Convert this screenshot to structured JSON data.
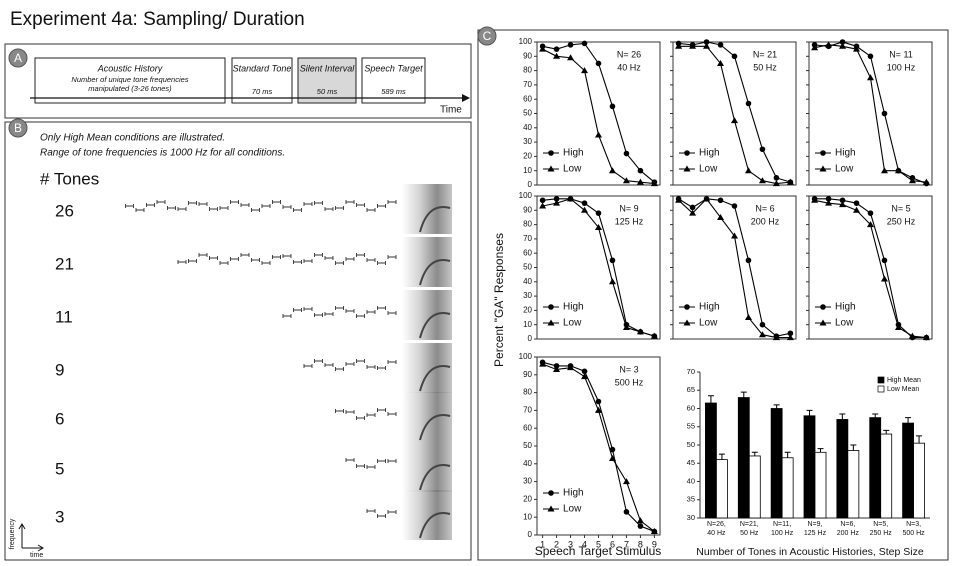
{
  "header": {
    "title": "Experiment 4a: Sampling/ Duration"
  },
  "panel_a": {
    "letter": "A",
    "boxes": [
      {
        "title": "Acoustic History",
        "detail": "Number of unique tone frequencies manipulated (3-26 tones)"
      },
      {
        "title": "Standard Tone",
        "detail": "70 ms"
      },
      {
        "title": "Silent Interval",
        "detail": "50 ms"
      },
      {
        "title": "Speech Target",
        "detail": "589 ms"
      }
    ],
    "axis_label": "Time"
  },
  "panel_b": {
    "letter": "B",
    "notes": [
      "Only High Mean conditions are illustrated.",
      "Range of tone frequencies is 1000 Hz for all conditions."
    ],
    "heading": "# Tones",
    "rows": [
      "26",
      "21",
      "11",
      "9",
      "6",
      "5",
      "3"
    ],
    "freq_label": "frequency",
    "time_label": "time"
  },
  "panel_c": {
    "letter": "C",
    "y_label": "Percent \"GA\" Responses",
    "x_label": "Speech Target Stimulus"
  },
  "chart_data": [
    {
      "type": "line",
      "title": "N= 26",
      "subtitle": "40 Hz",
      "x": [
        1,
        2,
        3,
        4,
        5,
        6,
        7,
        8,
        9
      ],
      "xlim": [
        0.6,
        9.4
      ],
      "ylim": [
        0,
        100
      ],
      "yticks": [
        0,
        10,
        20,
        30,
        40,
        50,
        60,
        70,
        80,
        90,
        100
      ],
      "series": [
        {
          "name": "High",
          "color": "#000000",
          "marker": "circle",
          "values": [
            97,
            95,
            98,
            99,
            85,
            55,
            22,
            10,
            2
          ]
        },
        {
          "name": "Low",
          "color": "#000000",
          "marker": "triangle",
          "values": [
            95,
            90,
            89,
            80,
            35,
            10,
            3,
            2,
            1
          ]
        }
      ]
    },
    {
      "type": "line",
      "title": "N= 21",
      "subtitle": "50 Hz",
      "x": [
        1,
        2,
        3,
        4,
        5,
        6,
        7,
        8,
        9
      ],
      "xlim": [
        0.6,
        9.4
      ],
      "ylim": [
        0,
        100
      ],
      "yticks": [
        0,
        10,
        20,
        30,
        40,
        50,
        60,
        70,
        80,
        90,
        100
      ],
      "series": [
        {
          "name": "High",
          "color": "#000000",
          "marker": "circle",
          "values": [
            99,
            98,
            100,
            98,
            90,
            57,
            25,
            5,
            2
          ]
        },
        {
          "name": "Low",
          "color": "#000000",
          "marker": "triangle",
          "values": [
            97,
            97,
            97,
            85,
            45,
            10,
            3,
            1,
            2
          ]
        }
      ]
    },
    {
      "type": "line",
      "title": "N= 11",
      "subtitle": "100 Hz",
      "x": [
        1,
        2,
        3,
        4,
        5,
        6,
        7,
        8,
        9
      ],
      "xlim": [
        0.6,
        9.4
      ],
      "ylim": [
        0,
        100
      ],
      "yticks": [
        0,
        10,
        20,
        30,
        40,
        50,
        60,
        70,
        80,
        90,
        100
      ],
      "series": [
        {
          "name": "High",
          "color": "#000000",
          "marker": "circle",
          "values": [
            98,
            97,
            100,
            97,
            90,
            50,
            10,
            5,
            1
          ]
        },
        {
          "name": "Low",
          "color": "#000000",
          "marker": "triangle",
          "values": [
            96,
            98,
            97,
            95,
            75,
            10,
            10,
            3,
            2
          ]
        }
      ]
    },
    {
      "type": "line",
      "title": "N= 9",
      "subtitle": "125 Hz",
      "x": [
        1,
        2,
        3,
        4,
        5,
        6,
        7,
        8,
        9
      ],
      "xlim": [
        0.6,
        9.4
      ],
      "ylim": [
        0,
        100
      ],
      "yticks": [
        0,
        10,
        20,
        30,
        40,
        50,
        60,
        70,
        80,
        90,
        100
      ],
      "series": [
        {
          "name": "High",
          "color": "#000000",
          "marker": "circle",
          "values": [
            97,
            98,
            98,
            95,
            88,
            55,
            10,
            5,
            2
          ]
        },
        {
          "name": "Low",
          "color": "#000000",
          "marker": "triangle",
          "values": [
            93,
            95,
            98,
            90,
            78,
            40,
            8,
            5,
            2
          ]
        }
      ]
    },
    {
      "type": "line",
      "title": "N= 6",
      "subtitle": "200 Hz",
      "x": [
        1,
        2,
        3,
        4,
        5,
        6,
        7,
        8,
        9
      ],
      "xlim": [
        0.6,
        9.4
      ],
      "ylim": [
        0,
        100
      ],
      "yticks": [
        0,
        10,
        20,
        30,
        40,
        50,
        60,
        70,
        80,
        90,
        100
      ],
      "series": [
        {
          "name": "High",
          "color": "#000000",
          "marker": "circle",
          "values": [
            98,
            92,
            98,
            97,
            93,
            55,
            10,
            2,
            4
          ]
        },
        {
          "name": "Low",
          "color": "#000000",
          "marker": "triangle",
          "values": [
            97,
            88,
            98,
            85,
            72,
            15,
            3,
            1,
            1
          ]
        }
      ]
    },
    {
      "type": "line",
      "title": "N= 5",
      "subtitle": "250 Hz",
      "x": [
        1,
        2,
        3,
        4,
        5,
        6,
        7,
        8,
        9
      ],
      "xlim": [
        0.6,
        9.4
      ],
      "ylim": [
        0,
        100
      ],
      "yticks": [
        0,
        10,
        20,
        30,
        40,
        50,
        60,
        70,
        80,
        90,
        100
      ],
      "series": [
        {
          "name": "High",
          "color": "#000000",
          "marker": "circle",
          "values": [
            98,
            98,
            97,
            95,
            88,
            55,
            10,
            1,
            1
          ]
        },
        {
          "name": "Low",
          "color": "#000000",
          "marker": "triangle",
          "values": [
            97,
            95,
            94,
            90,
            80,
            42,
            8,
            2,
            1
          ]
        }
      ]
    },
    {
      "type": "line",
      "title": "N= 3",
      "subtitle": "500 Hz",
      "x": [
        1,
        2,
        3,
        4,
        5,
        6,
        7,
        8,
        9
      ],
      "xlim": [
        0.6,
        9.4
      ],
      "ylim": [
        0,
        100
      ],
      "yticks": [
        0,
        10,
        20,
        30,
        40,
        50,
        60,
        70,
        80,
        90,
        100
      ],
      "xticks": [
        1,
        2,
        3,
        4,
        5,
        6,
        7,
        8,
        9
      ],
      "series": [
        {
          "name": "High",
          "color": "#000000",
          "marker": "circle",
          "values": [
            97,
            95,
            95,
            92,
            75,
            48,
            13,
            5,
            2
          ]
        },
        {
          "name": "Low",
          "color": "#000000",
          "marker": "triangle",
          "values": [
            96,
            93,
            94,
            89,
            70,
            43,
            30,
            8,
            2
          ]
        }
      ]
    },
    {
      "type": "bar",
      "x_label": "Number of Tones in Acoustic Histories, Step Size",
      "categories": [
        "N=26, 40 Hz",
        "N=21, 50 Hz",
        "N=11, 100 Hz",
        "N=9, 125 Hz",
        "N=6, 200 Hz",
        "N=5, 250 Hz",
        "N=3, 500 Hz"
      ],
      "ylim": [
        30,
        70
      ],
      "yticks": [
        30,
        35,
        40,
        45,
        50,
        55,
        60,
        65,
        70
      ],
      "series": [
        {
          "name": "High Mean",
          "color": "#000000",
          "values": [
            61.5,
            63,
            60,
            58,
            57,
            57.5,
            56
          ],
          "errors": [
            2,
            1.5,
            1,
            1.5,
            1.5,
            1,
            1.5
          ]
        },
        {
          "name": "Low Mean",
          "color": "#ffffff",
          "values": [
            46,
            47,
            46.5,
            48,
            48.5,
            53,
            50.5
          ],
          "errors": [
            1.5,
            1,
            1.5,
            1,
            1.5,
            1,
            2
          ]
        }
      ]
    }
  ]
}
